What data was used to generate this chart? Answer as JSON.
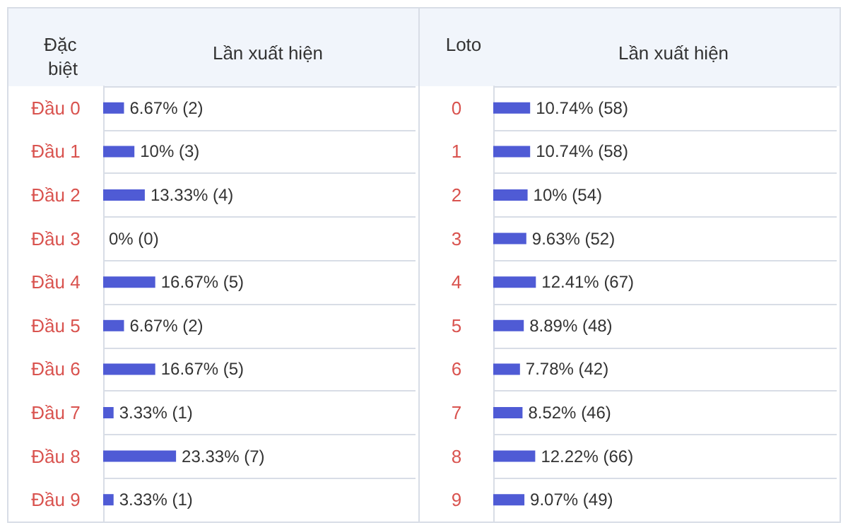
{
  "chart_data": [
    {
      "type": "bar",
      "orientation": "horizontal",
      "title": "Lần xuất hiện",
      "ylabel": "Đặc biệt",
      "categories": [
        "Đầu 0",
        "Đầu 1",
        "Đầu 2",
        "Đầu 3",
        "Đầu 4",
        "Đầu 5",
        "Đầu 6",
        "Đầu 7",
        "Đầu 8",
        "Đầu 9"
      ],
      "values": [
        6.67,
        10,
        13.33,
        0,
        16.67,
        6.67,
        16.67,
        3.33,
        23.33,
        3.33
      ],
      "value_labels": [
        "6.67% (2)",
        "10% (3)",
        "13.33% (4)",
        "0% (0)",
        "16.67% (5)",
        "6.67% (2)",
        "16.67% (5)",
        "3.33% (1)",
        "23.33% (7)",
        "3.33% (1)"
      ],
      "color": "#4f5bd5",
      "xlim": [
        0,
        100
      ],
      "tick_labels": "y",
      "grid": "y"
    },
    {
      "type": "bar",
      "orientation": "horizontal",
      "title": "Lần xuất hiện",
      "ylabel": "Loto",
      "categories": [
        "0",
        "1",
        "2",
        "3",
        "4",
        "5",
        "6",
        "7",
        "8",
        "9"
      ],
      "values": [
        10.74,
        10.74,
        10,
        9.63,
        12.41,
        8.89,
        7.78,
        8.52,
        12.22,
        9.07
      ],
      "value_labels": [
        "10.74% (58)",
        "10.74% (58)",
        "10% (54)",
        "9.63% (52)",
        "12.41% (67)",
        "8.89% (48)",
        "7.78% (42)",
        "8.52% (46)",
        "12.22% (66)",
        "9.07% (49)"
      ],
      "color": "#4f5bd5",
      "xlim": [
        0,
        100
      ],
      "tick_labels": "y",
      "grid": "y"
    }
  ]
}
